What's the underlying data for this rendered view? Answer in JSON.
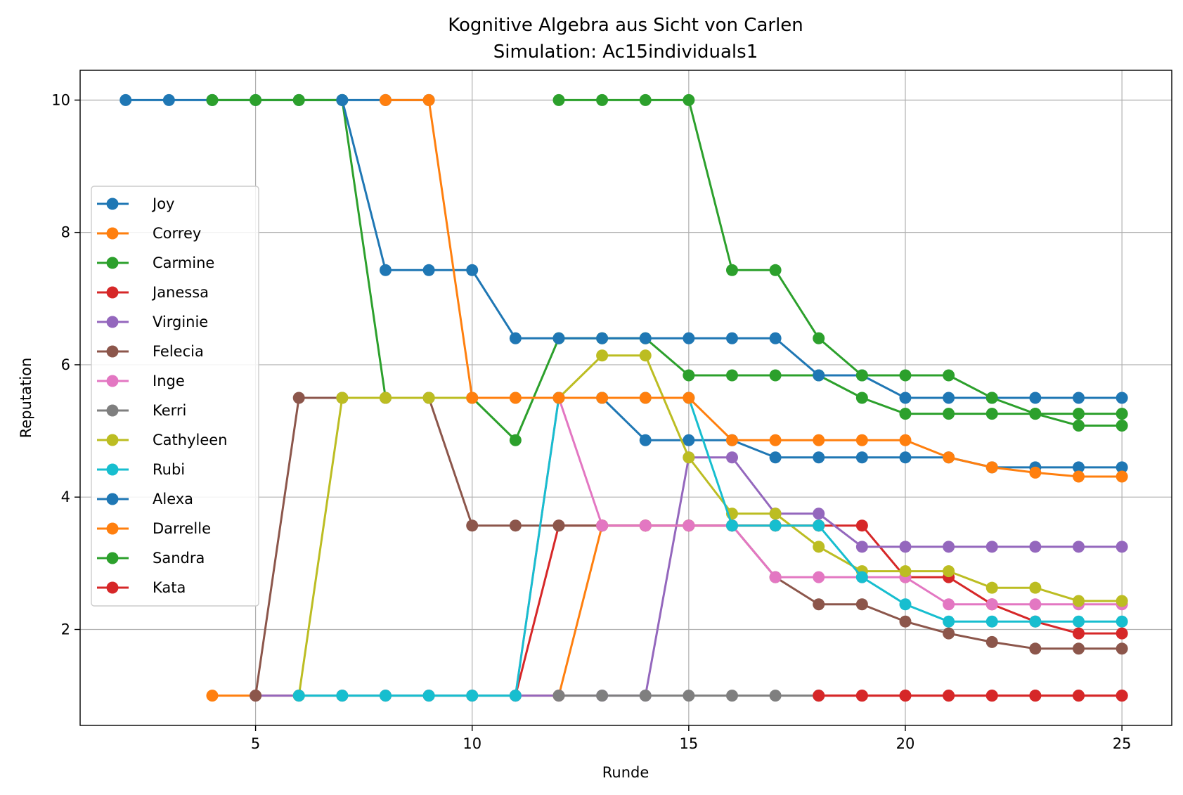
{
  "chart_data": {
    "type": "line",
    "title": "Kognitive Algebra aus Sicht von Carlen",
    "subtitle": "Simulation: Ac15individuals1",
    "xlabel": "Runde",
    "ylabel": "Reputation",
    "xlim": [
      0.95,
      26.15
    ],
    "ylim": [
      0.55,
      10.45
    ],
    "xticks": [
      5,
      10,
      15,
      20,
      25
    ],
    "yticks": [
      2,
      4,
      6,
      8,
      10
    ],
    "grid": true,
    "legend_position": "center-left",
    "series": [
      {
        "name": "Joy",
        "color": "#1f77b4",
        "points": [
          [
            2,
            10
          ],
          [
            3,
            10
          ],
          [
            4,
            10
          ],
          [
            5,
            10
          ],
          [
            6,
            10
          ],
          [
            7,
            10
          ],
          [
            8,
            10
          ],
          [
            9,
            10
          ]
        ]
      },
      {
        "name": "Correy",
        "color": "#ff7f0e",
        "points": [
          [
            4,
            1
          ],
          [
            5,
            1
          ],
          [
            6,
            1
          ],
          [
            7,
            1
          ],
          [
            8,
            1
          ],
          [
            9,
            1
          ],
          [
            10,
            1
          ],
          [
            11,
            1
          ],
          [
            12,
            1
          ],
          [
            13,
            3.57
          ],
          [
            14,
            3.57
          ],
          [
            15,
            3.57
          ],
          [
            16,
            3.57
          ],
          [
            17,
            3.57
          ],
          [
            18,
            3.57
          ]
        ]
      },
      {
        "name": "Carmine",
        "color": "#2ca02c",
        "points": [
          [
            4,
            10
          ],
          [
            5,
            10
          ],
          [
            6,
            10
          ],
          [
            7,
            10
          ],
          [
            8,
            5.5
          ],
          [
            9,
            5.5
          ],
          [
            10,
            5.5
          ],
          [
            11,
            4.86
          ],
          [
            12,
            6.4
          ],
          [
            13,
            6.4
          ],
          [
            14,
            6.4
          ],
          [
            15,
            5.84
          ],
          [
            16,
            5.84
          ],
          [
            17,
            5.84
          ],
          [
            18,
            5.84
          ],
          [
            19,
            5.5
          ],
          [
            20,
            5.26
          ],
          [
            21,
            5.26
          ],
          [
            22,
            5.26
          ],
          [
            23,
            5.26
          ],
          [
            24,
            5.08
          ],
          [
            25,
            5.08
          ]
        ]
      },
      {
        "name": "Janessa",
        "color": "#d62728",
        "points": [
          [
            11,
            1
          ],
          [
            12,
            3.57
          ],
          [
            13,
            3.57
          ],
          [
            14,
            3.57
          ],
          [
            15,
            3.57
          ],
          [
            16,
            3.57
          ],
          [
            17,
            3.57
          ],
          [
            18,
            3.57
          ],
          [
            19,
            3.57
          ],
          [
            20,
            2.79
          ],
          [
            21,
            2.79
          ],
          [
            22,
            2.38
          ],
          [
            23,
            2.12
          ],
          [
            24,
            1.94
          ],
          [
            25,
            1.94
          ]
        ]
      },
      {
        "name": "Virginie",
        "color": "#9467bd",
        "points": [
          [
            5,
            1
          ],
          [
            6,
            1
          ],
          [
            7,
            1
          ],
          [
            8,
            1
          ],
          [
            9,
            1
          ],
          [
            10,
            1
          ],
          [
            11,
            1
          ],
          [
            12,
            1
          ],
          [
            13,
            1
          ],
          [
            14,
            1
          ],
          [
            15,
            4.6
          ],
          [
            16,
            4.6
          ],
          [
            17,
            3.75
          ],
          [
            18,
            3.75
          ],
          [
            19,
            3.25
          ],
          [
            20,
            3.25
          ],
          [
            21,
            3.25
          ],
          [
            22,
            3.25
          ],
          [
            23,
            3.25
          ],
          [
            24,
            3.25
          ],
          [
            25,
            3.25
          ]
        ]
      },
      {
        "name": "Felecia",
        "color": "#8c564b",
        "points": [
          [
            5,
            1
          ],
          [
            6,
            5.5
          ],
          [
            7,
            5.5
          ],
          [
            8,
            5.5
          ],
          [
            9,
            5.5
          ],
          [
            10,
            3.57
          ],
          [
            11,
            3.57
          ],
          [
            12,
            3.57
          ],
          [
            13,
            3.57
          ],
          [
            14,
            3.57
          ],
          [
            15,
            3.57
          ],
          [
            16,
            3.57
          ],
          [
            17,
            2.79
          ],
          [
            18,
            2.38
          ],
          [
            19,
            2.38
          ],
          [
            20,
            2.12
          ],
          [
            21,
            1.94
          ],
          [
            22,
            1.81
          ],
          [
            23,
            1.71
          ],
          [
            24,
            1.71
          ],
          [
            25,
            1.71
          ]
        ]
      },
      {
        "name": "Inge",
        "color": "#e377c2",
        "points": [
          [
            11,
            1
          ],
          [
            12,
            5.5
          ],
          [
            13,
            3.57
          ],
          [
            14,
            3.57
          ],
          [
            15,
            3.57
          ],
          [
            16,
            3.57
          ],
          [
            17,
            2.79
          ],
          [
            18,
            2.79
          ],
          [
            19,
            2.79
          ],
          [
            20,
            2.79
          ],
          [
            21,
            2.38
          ],
          [
            22,
            2.38
          ],
          [
            23,
            2.38
          ],
          [
            24,
            2.38
          ],
          [
            25,
            2.38
          ]
        ]
      },
      {
        "name": "Kerri",
        "color": "#7f7f7f",
        "points": [
          [
            12,
            1
          ],
          [
            13,
            1
          ],
          [
            14,
            1
          ],
          [
            15,
            1
          ],
          [
            16,
            1
          ],
          [
            17,
            1
          ],
          [
            18,
            1
          ]
        ]
      },
      {
        "name": "Cathyleen",
        "color": "#bcbd22",
        "points": [
          [
            6,
            1
          ],
          [
            7,
            5.5
          ],
          [
            8,
            5.5
          ],
          [
            9,
            5.5
          ],
          [
            10,
            5.5
          ],
          [
            11,
            5.5
          ],
          [
            12,
            5.5
          ],
          [
            13,
            6.14
          ],
          [
            14,
            6.14
          ],
          [
            15,
            4.6
          ],
          [
            16,
            3.75
          ],
          [
            17,
            3.75
          ],
          [
            18,
            3.25
          ],
          [
            19,
            2.88
          ],
          [
            20,
            2.88
          ],
          [
            21,
            2.88
          ],
          [
            22,
            2.63
          ],
          [
            23,
            2.63
          ],
          [
            24,
            2.43
          ],
          [
            25,
            2.43
          ]
        ]
      },
      {
        "name": "Rubi",
        "color": "#17becf",
        "points": [
          [
            6,
            1
          ],
          [
            7,
            1
          ],
          [
            8,
            1
          ],
          [
            9,
            1
          ],
          [
            10,
            1
          ],
          [
            11,
            1
          ],
          [
            12,
            5.5
          ],
          [
            13,
            5.5
          ],
          [
            14,
            5.5
          ],
          [
            15,
            5.5
          ],
          [
            16,
            3.57
          ],
          [
            17,
            3.57
          ],
          [
            18,
            3.57
          ],
          [
            19,
            2.79
          ],
          [
            20,
            2.38
          ],
          [
            21,
            2.12
          ],
          [
            22,
            2.12
          ],
          [
            23,
            2.12
          ],
          [
            24,
            2.12
          ],
          [
            25,
            2.12
          ]
        ]
      },
      {
        "name": "Alexa",
        "color": "#1f77b4",
        "points": [
          [
            7,
            10
          ],
          [
            8,
            7.43
          ],
          [
            9,
            7.43
          ],
          [
            10,
            7.43
          ],
          [
            11,
            6.4
          ],
          [
            12,
            6.4
          ],
          [
            13,
            6.4
          ],
          [
            14,
            6.4
          ],
          [
            15,
            6.4
          ],
          [
            16,
            6.4
          ],
          [
            17,
            6.4
          ],
          [
            18,
            5.84
          ],
          [
            19,
            5.84
          ],
          [
            20,
            5.5
          ],
          [
            21,
            5.5
          ],
          [
            22,
            5.5
          ],
          [
            23,
            5.5
          ],
          [
            24,
            5.5
          ],
          [
            25,
            5.5
          ]
        ]
      },
      {
        "name": "Darrelle",
        "color": "#ff7f0e",
        "points": [
          [
            8,
            10
          ],
          [
            9,
            10
          ],
          [
            10,
            5.5
          ],
          [
            11,
            5.5
          ],
          [
            12,
            5.5
          ],
          [
            13,
            5.5
          ],
          [
            14,
            5.5
          ],
          [
            15,
            5.5
          ],
          [
            16,
            4.86
          ],
          [
            17,
            4.86
          ],
          [
            18,
            4.86
          ],
          [
            19,
            4.86
          ],
          [
            20,
            4.86
          ],
          [
            21,
            4.6
          ],
          [
            22,
            4.45
          ],
          [
            23,
            4.37
          ],
          [
            24,
            4.31
          ],
          [
            25,
            4.31
          ]
        ]
      },
      {
        "name": "Sandra",
        "color": "#2ca02c",
        "points": [
          [
            12,
            10
          ],
          [
            13,
            10
          ],
          [
            14,
            10
          ],
          [
            15,
            10
          ],
          [
            16,
            7.43
          ],
          [
            17,
            7.43
          ],
          [
            18,
            6.4
          ],
          [
            19,
            5.84
          ],
          [
            20,
            5.84
          ],
          [
            21,
            5.84
          ],
          [
            22,
            5.5
          ],
          [
            23,
            5.26
          ],
          [
            24,
            5.26
          ],
          [
            25,
            5.26
          ]
        ]
      },
      {
        "name": "Kata",
        "color": "#d62728",
        "points": [
          [
            18,
            1
          ],
          [
            19,
            1
          ],
          [
            20,
            1
          ],
          [
            21,
            1
          ],
          [
            22,
            1
          ],
          [
            23,
            1
          ],
          [
            24,
            1
          ],
          [
            25,
            1
          ]
        ]
      }
    ],
    "extra_segments": [
      {
        "color": "#1f77b4",
        "points": [
          [
            12,
            5.5
          ],
          [
            13,
            5.5
          ],
          [
            14,
            4.86
          ],
          [
            15,
            4.86
          ],
          [
            16,
            4.86
          ],
          [
            17,
            4.6
          ],
          [
            18,
            4.6
          ],
          [
            19,
            4.6
          ],
          [
            20,
            4.6
          ],
          [
            21,
            4.6
          ],
          [
            22,
            4.45
          ],
          [
            23,
            4.45
          ],
          [
            24,
            4.45
          ],
          [
            25,
            4.45
          ]
        ]
      },
      {
        "color": "#d62728",
        "points": [
          [
            18,
            1
          ],
          [
            19,
            1
          ],
          [
            20,
            1
          ],
          [
            21,
            1
          ],
          [
            22,
            1
          ],
          [
            23,
            1
          ],
          [
            24,
            1
          ],
          [
            25,
            1
          ]
        ]
      }
    ]
  }
}
